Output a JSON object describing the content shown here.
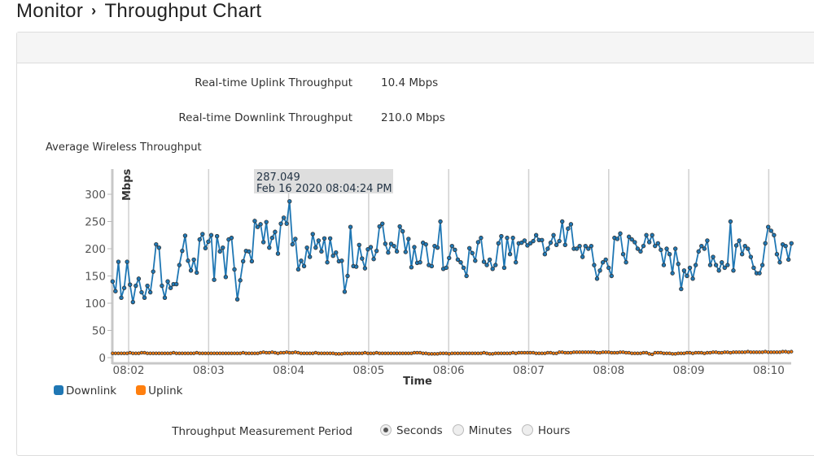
{
  "breadcrumb": {
    "parent": "Monitor",
    "separator": "›",
    "current": "Throughput Chart"
  },
  "stats": [
    {
      "label": "Real-time Uplink Throughput",
      "value": "10.4 Mbps"
    },
    {
      "label": "Real-time Downlink Throughput",
      "value": "210.0 Mbps"
    }
  ],
  "section_title": "Average Wireless Throughput",
  "tooltip": {
    "value": "287.049",
    "time": "Feb 16 2020 08:04:24 PM"
  },
  "measurement": {
    "label": "Throughput Measurement Period",
    "options": [
      "Seconds",
      "Minutes",
      "Hours"
    ],
    "selected": "Seconds"
  },
  "colors": {
    "downlink": "#1f77b4",
    "uplink": "#ff7f0e"
  },
  "chart_data": {
    "type": "line",
    "xlabel": "Time",
    "ylabel": "Mbps",
    "ylim": [
      0,
      345
    ],
    "yticks": [
      0,
      50,
      100,
      150,
      200,
      250,
      300
    ],
    "xticks": [
      "08:02",
      "08:03",
      "08:04",
      "08:05",
      "08:06",
      "08:07",
      "08:08",
      "08:09",
      "08:10"
    ],
    "x_start": "08:01:48",
    "x_end": "08:10:17",
    "legend": "bottom-left",
    "series": [
      {
        "name": "Downlink",
        "values": [
          140,
          122,
          176,
          110,
          128,
          176,
          134,
          102,
          132,
          145,
          120,
          110,
          132,
          120,
          158,
          208,
          202,
          132,
          110,
          140,
          128,
          135,
          135,
          170,
          196,
          224,
          178,
          160,
          180,
          156,
          217,
          227,
          201,
          213,
          225,
          143,
          223,
          195,
          202,
          148,
          217,
          220,
          162,
          107,
          142,
          177,
          196,
          195,
          177,
          251,
          240,
          245,
          212,
          249,
          202,
          220,
          231,
          191,
          246,
          257,
          246,
          287,
          208,
          218,
          162,
          178,
          168,
          202,
          185,
          227,
          202,
          215,
          195,
          219,
          175,
          219,
          187,
          193,
          177,
          178,
          121,
          150,
          240,
          168,
          167,
          207,
          182,
          164,
          199,
          203,
          181,
          196,
          241,
          246,
          209,
          193,
          209,
          205,
          195,
          241,
          232,
          194,
          218,
          166,
          203,
          174,
          175,
          211,
          208,
          170,
          168,
          205,
          202,
          250,
          163,
          165,
          183,
          205,
          198,
          180,
          175,
          165,
          150,
          201,
          192,
          178,
          212,
          220,
          176,
          170,
          180,
          163,
          170,
          210,
          223,
          165,
          220,
          190,
          220,
          175,
          210,
          211,
          215,
          206,
          210,
          214,
          225,
          216,
          216,
          190,
          200,
          211,
          225,
          207,
          214,
          250,
          207,
          237,
          245,
          200,
          200,
          205,
          185,
          205,
          200,
          205,
          170,
          145,
          160,
          175,
          180,
          165,
          150,
          220,
          218,
          228,
          190,
          175,
          222,
          217,
          212,
          200,
          195,
          205,
          225,
          212,
          225,
          205,
          210,
          198,
          170,
          200,
          190,
          155,
          200,
          172,
          126,
          160,
          150,
          165,
          145,
          170,
          195,
          205,
          200,
          215,
          170,
          185,
          170,
          160,
          175,
          165,
          170,
          250,
          160,
          206,
          215,
          190,
          205,
          200,
          185,
          165,
          155,
          155,
          170,
          210,
          240,
          233,
          225,
          190,
          175,
          208,
          205,
          180,
          210
        ]
      },
      {
        "name": "Uplink",
        "values": [
          8,
          8,
          8,
          8,
          8,
          8,
          9,
          8,
          8,
          8,
          9,
          9,
          8,
          8,
          8,
          8,
          8,
          8,
          8,
          8,
          8,
          9,
          8,
          8,
          8,
          8,
          8,
          8,
          8,
          9,
          8,
          8,
          8,
          8,
          8,
          8,
          8,
          8,
          8,
          8,
          8,
          8,
          8,
          8,
          8,
          9,
          8,
          8,
          8,
          8,
          8,
          9,
          10,
          9,
          9,
          10,
          9,
          8,
          9,
          9,
          10,
          9,
          9,
          10,
          9,
          8,
          8,
          8,
          8,
          8,
          9,
          8,
          8,
          8,
          8,
          8,
          8,
          7,
          7,
          7,
          8,
          8,
          8,
          8,
          8,
          8,
          8,
          9,
          8,
          8,
          8,
          9,
          8,
          8,
          8,
          8,
          8,
          8,
          8,
          8,
          8,
          8,
          8,
          8,
          9,
          9,
          9,
          8,
          8,
          7,
          7,
          7,
          7,
          8,
          8,
          8,
          7,
          8,
          8,
          8,
          8,
          8,
          8,
          8,
          8,
          8,
          8,
          8,
          9,
          8,
          7,
          7,
          8,
          8,
          8,
          8,
          8,
          8,
          9,
          8,
          9,
          9,
          9,
          9,
          9,
          9,
          8,
          8,
          8,
          8,
          9,
          9,
          8,
          8,
          10,
          10,
          9,
          9,
          9,
          10,
          10,
          10,
          10,
          10,
          10,
          10,
          10,
          9,
          9,
          10,
          10,
          10,
          9,
          9,
          9,
          10,
          10,
          9,
          9,
          8,
          8,
          8,
          8,
          9,
          9,
          7,
          6,
          9,
          9,
          9,
          8,
          8,
          8,
          7,
          7,
          8,
          8,
          8,
          9,
          9,
          8,
          9,
          9,
          9,
          8,
          9,
          9,
          10,
          10,
          9,
          9,
          10,
          10,
          9,
          10,
          10,
          10,
          10,
          10,
          11,
          10,
          10,
          10,
          10,
          10,
          11,
          10,
          10,
          10,
          10,
          10,
          11,
          11,
          10,
          11
        ]
      }
    ]
  }
}
